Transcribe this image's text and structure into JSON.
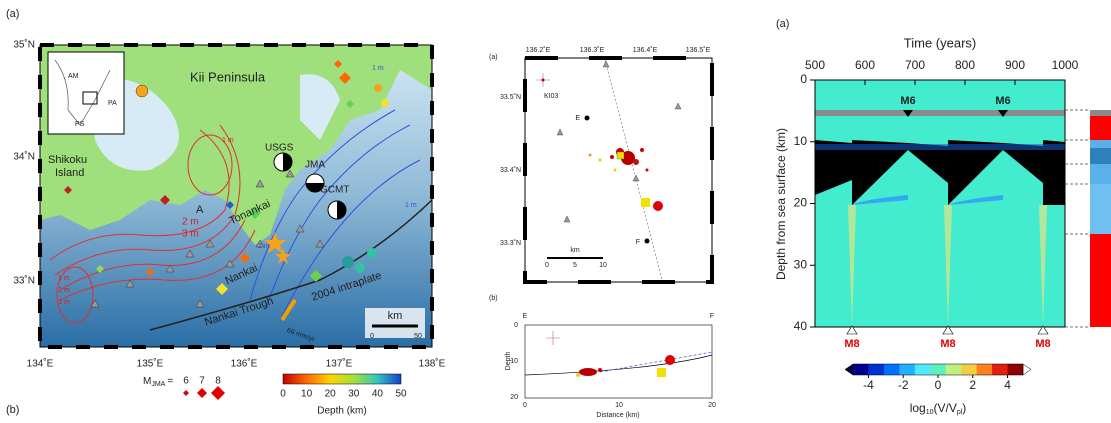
{
  "map_panel": {
    "label_a": "(a)",
    "label_b": "(b)",
    "lat_labels": [
      "35˚N",
      "34˚N",
      "33˚N"
    ],
    "lon_labels": [
      "134˚E",
      "135˚E",
      "136˚E",
      "137˚E",
      "138˚E"
    ],
    "places": [
      "Kii Peninsula",
      "Shikoku",
      "Island",
      "Tonankai",
      "Nankai",
      "Nankai Trough",
      "2004 intraplate",
      "66 mm/yr",
      "A"
    ],
    "solutions": [
      "USGS",
      "JMA",
      "GCMT"
    ],
    "contours": [
      "1 m",
      "2 m",
      "3 m",
      "1 m",
      "2 m",
      "3 m",
      "1 m",
      "2 m",
      "1 m"
    ],
    "inset": [
      "AM",
      "PA",
      "PS"
    ],
    "scale": {
      "unit": "km",
      "ticks": [
        "0",
        "50"
      ]
    },
    "magnitude_legend": {
      "symbol": "M",
      "sub": "JMA",
      "eq": "=",
      "values": [
        "6",
        "7",
        "8"
      ]
    },
    "depth_colorbar": {
      "ticks": [
        "0",
        "10",
        "20",
        "30",
        "40",
        "50"
      ],
      "title": "Depth (km)"
    }
  },
  "detail_panel": {
    "label_a": "(a)",
    "label_b": "(b)",
    "lon_labels": [
      "136.2˚E",
      "136.3˚E",
      "136.4˚E",
      "136.5˚E"
    ],
    "lat_labels": [
      "33.5˚N",
      "33.4˚N",
      "33.3˚N"
    ],
    "station": "KI03",
    "point_e": "E",
    "point_f": "F",
    "scale": {
      "unit": "km",
      "ticks": [
        "0",
        "5",
        "10"
      ]
    },
    "section": {
      "left": "E",
      "right": "F",
      "y_label": "Depth",
      "x_label": "Distance (km)",
      "y_ticks": [
        "0",
        "10",
        "20"
      ],
      "x_ticks": [
        "0",
        "10",
        "20"
      ]
    }
  },
  "simulation_panel": {
    "label": "(a)",
    "x_title": "Time (years)",
    "y_title": "Depth from sea surface (km)",
    "xlim": [
      500,
      1000
    ],
    "xticks": [
      500,
      600,
      700,
      800,
      900,
      1000
    ],
    "ylim": [
      0,
      40
    ],
    "yticks": [
      0,
      10,
      20,
      30,
      40
    ],
    "events_small": [
      "M6",
      "M6"
    ],
    "events_large": [
      "M8",
      "M8",
      "M8"
    ],
    "colorbar": {
      "ticks": [
        -4,
        -2,
        0,
        2,
        4
      ],
      "title": {
        "main": "log",
        "sub1": "10",
        "mid": "(V/V",
        "sub2": "pl",
        "end": ")"
      }
    }
  }
}
